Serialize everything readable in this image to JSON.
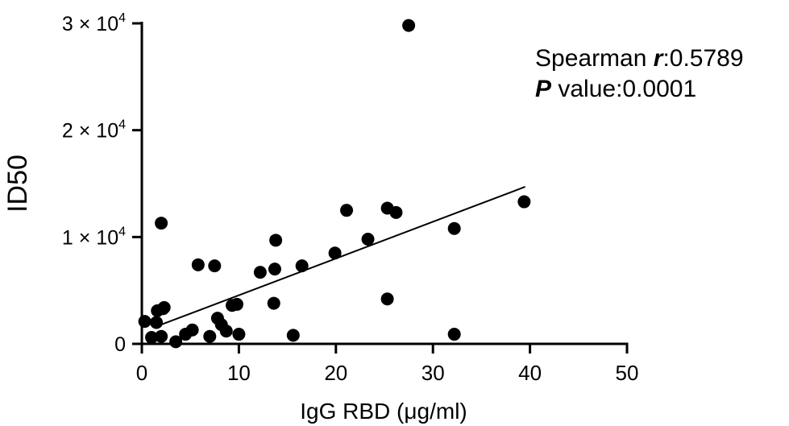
{
  "chart_data": {
    "type": "scatter",
    "xlabel": "IgG RBD (μg/ml)",
    "ylabel": "ID50",
    "xlim": [
      0,
      50
    ],
    "ylim": [
      0,
      30000
    ],
    "x_ticks": [
      0,
      10,
      20,
      30,
      40,
      50
    ],
    "x_tick_labels": [
      "0",
      "10",
      "20",
      "30",
      "40",
      "50"
    ],
    "y_ticks": [
      0,
      10000,
      20000,
      30000
    ],
    "y_tick_labels": [
      {
        "mantissa": "0",
        "exponent": ""
      },
      {
        "mantissa": "1 × 10",
        "exponent": "4"
      },
      {
        "mantissa": "2 × 10",
        "exponent": "4"
      },
      {
        "mantissa": "3 × 10",
        "exponent": "4"
      }
    ],
    "points": [
      {
        "x": 0.3,
        "y": 2100
      },
      {
        "x": 1.0,
        "y": 600
      },
      {
        "x": 1.5,
        "y": 2000
      },
      {
        "x": 1.6,
        "y": 3100
      },
      {
        "x": 2.0,
        "y": 11300
      },
      {
        "x": 2.0,
        "y": 700
      },
      {
        "x": 2.2,
        "y": 3300
      },
      {
        "x": 2.3,
        "y": 3400
      },
      {
        "x": 3.5,
        "y": 200
      },
      {
        "x": 4.5,
        "y": 900
      },
      {
        "x": 5.2,
        "y": 1300
      },
      {
        "x": 5.8,
        "y": 7400
      },
      {
        "x": 7.0,
        "y": 700
      },
      {
        "x": 7.5,
        "y": 7300
      },
      {
        "x": 7.8,
        "y": 2400
      },
      {
        "x": 8.2,
        "y": 1800
      },
      {
        "x": 8.7,
        "y": 1200
      },
      {
        "x": 9.3,
        "y": 3600
      },
      {
        "x": 9.8,
        "y": 3700
      },
      {
        "x": 10.0,
        "y": 900
      },
      {
        "x": 12.2,
        "y": 6700
      },
      {
        "x": 13.6,
        "y": 3800
      },
      {
        "x": 13.7,
        "y": 7000
      },
      {
        "x": 13.8,
        "y": 9700
      },
      {
        "x": 15.6,
        "y": 800
      },
      {
        "x": 16.5,
        "y": 7300
      },
      {
        "x": 19.9,
        "y": 8500
      },
      {
        "x": 21.1,
        "y": 12500
      },
      {
        "x": 23.3,
        "y": 9800
      },
      {
        "x": 25.3,
        "y": 12700
      },
      {
        "x": 25.3,
        "y": 4200
      },
      {
        "x": 26.2,
        "y": 12300
      },
      {
        "x": 27.5,
        "y": 29800
      },
      {
        "x": 32.2,
        "y": 10800
      },
      {
        "x": 32.2,
        "y": 900
      },
      {
        "x": 39.4,
        "y": 13300
      }
    ],
    "fit_line": {
      "x": [
        2.0,
        39.5
      ],
      "y": [
        1800,
        14700
      ]
    },
    "grid": false,
    "legend": "none",
    "annotations": [
      {
        "label": "Spearman ",
        "emph": "r",
        "value": ":0.5789"
      },
      {
        "label": " value:0.0001",
        "emph": "P",
        "value": ""
      }
    ]
  }
}
